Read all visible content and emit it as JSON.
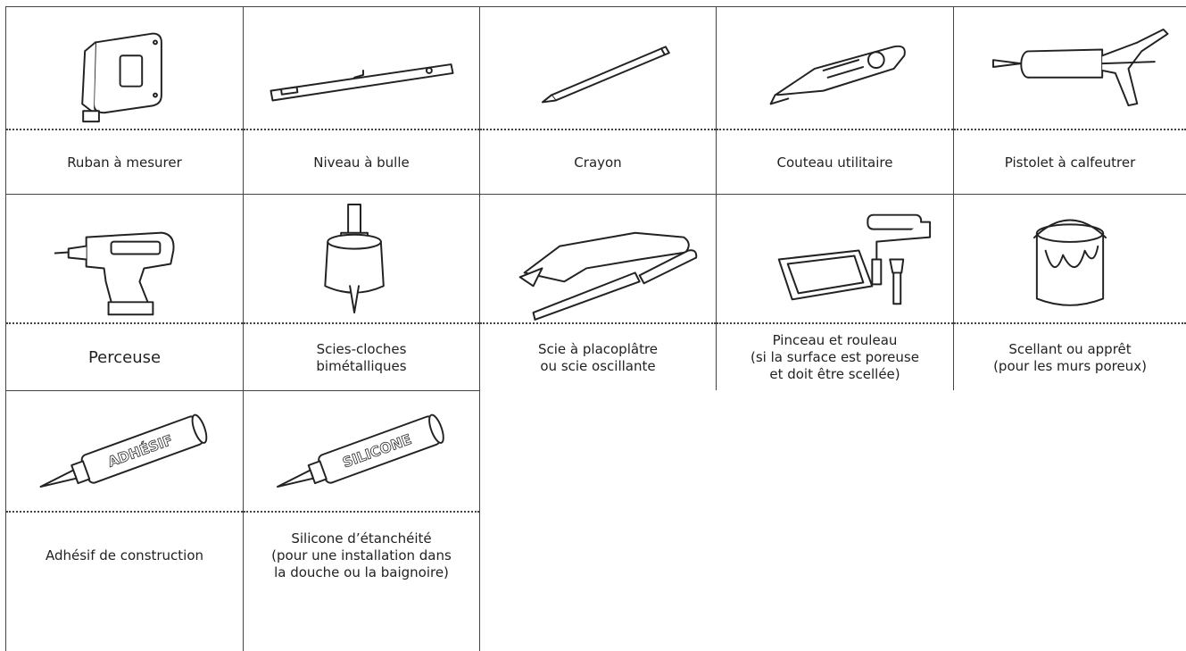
{
  "items": [
    {
      "label_lines": [
        "Ruban à mesurer"
      ]
    },
    {
      "label_lines": [
        "Niveau à bulle"
      ]
    },
    {
      "label_lines": [
        "Crayon"
      ]
    },
    {
      "label_lines": [
        "Couteau utilitaire"
      ]
    },
    {
      "label_lines": [
        "Pistolet à calfeutrer"
      ]
    },
    {
      "label_lines": [
        "Perceuse"
      ]
    },
    {
      "label_lines": [
        "Scies-cloches",
        "bimétalliques"
      ]
    },
    {
      "label_lines": [
        "Scie à placoplâtre",
        "ou scie oscillante"
      ]
    },
    {
      "label_lines": [
        "Pinceau et rouleau",
        "(si la surface est poreuse",
        "et doit être scellée)"
      ]
    },
    {
      "label_lines": [
        "Scellant ou apprêt",
        "(pour les murs poreux)"
      ]
    },
    {
      "label_lines": [
        "Adhésif de construction"
      ],
      "tube_text": "ADHÉSIF"
    },
    {
      "label_lines": [
        "Silicone d’étanchéité",
        "(pour une installation dans",
        "la douche ou la baignoire)"
      ],
      "tube_text": "SILICONE"
    }
  ]
}
